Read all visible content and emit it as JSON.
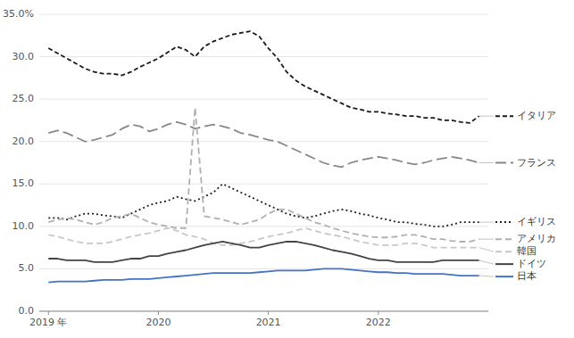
{
  "chart_data": {
    "type": "line",
    "categories": [
      "2019 年",
      null,
      null,
      null,
      null,
      null,
      null,
      null,
      null,
      null,
      null,
      null,
      "2020",
      null,
      null,
      null,
      null,
      null,
      null,
      null,
      null,
      null,
      null,
      null,
      "2021",
      null,
      null,
      null,
      null,
      null,
      null,
      null,
      null,
      null,
      null,
      null,
      "2022",
      null,
      null,
      null,
      null,
      null,
      null,
      null,
      null,
      null,
      null,
      null
    ],
    "ylim": [
      0,
      35
    ],
    "yticks": [
      {
        "value": 0.0,
        "label": "0.0"
      },
      {
        "value": 5.0,
        "label": "5.0"
      },
      {
        "value": 10.0,
        "label": "10.0"
      },
      {
        "value": 15.0,
        "label": "15.0"
      },
      {
        "value": 20.0,
        "label": "20.0"
      },
      {
        "value": 25.0,
        "label": "25.0"
      },
      {
        "value": 30.0,
        "label": "30.0"
      },
      {
        "value": 35.0,
        "label": "35.0%"
      }
    ],
    "grid": true,
    "legend": "right",
    "series": [
      {
        "name": "イタリア",
        "color": "#1a1a1a",
        "line_style": "shortdash",
        "values": [
          31.0,
          30.4,
          29.8,
          29.2,
          28.6,
          28.2,
          28.0,
          28.0,
          27.8,
          28.2,
          28.8,
          29.3,
          29.8,
          30.5,
          31.2,
          30.8,
          30.0,
          31.2,
          31.8,
          32.2,
          32.6,
          32.8,
          33.0,
          32.4,
          31.0,
          29.8,
          28.2,
          27.2,
          26.5,
          26.0,
          25.5,
          25.0,
          24.5,
          24.0,
          23.8,
          23.5,
          23.5,
          23.3,
          23.2,
          23.0,
          23.0,
          22.8,
          22.8,
          22.5,
          22.5,
          22.3,
          22.2,
          23.0
        ]
      },
      {
        "name": "フランス",
        "color": "#888888",
        "line_style": "longdash",
        "values": [
          21.0,
          21.3,
          21.0,
          20.5,
          20.0,
          20.2,
          20.5,
          20.8,
          21.5,
          22.0,
          21.8,
          21.2,
          21.5,
          22.0,
          22.3,
          22.0,
          21.5,
          21.8,
          22.0,
          21.8,
          21.5,
          21.0,
          20.8,
          20.5,
          20.2,
          20.0,
          19.5,
          19.0,
          18.5,
          18.0,
          17.5,
          17.2,
          17.0,
          17.5,
          17.8,
          18.0,
          18.2,
          18.0,
          17.8,
          17.5,
          17.3,
          17.5,
          17.8,
          18.0,
          18.2,
          18.0,
          17.8,
          17.5
        ]
      },
      {
        "name": "イギリス",
        "color": "#222222",
        "line_style": "dotted",
        "values": [
          11.0,
          11.0,
          10.8,
          11.2,
          11.5,
          11.5,
          11.3,
          11.2,
          11.0,
          11.5,
          12.0,
          12.5,
          12.8,
          13.0,
          13.5,
          13.2,
          13.0,
          13.5,
          14.0,
          15.0,
          14.5,
          14.0,
          13.5,
          13.0,
          12.5,
          12.0,
          11.5,
          11.2,
          11.0,
          11.2,
          11.5,
          11.8,
          12.0,
          11.8,
          11.5,
          11.3,
          11.0,
          10.8,
          10.5,
          10.5,
          10.3,
          10.2,
          10.0,
          10.0,
          10.2,
          10.5,
          10.5,
          10.5
        ]
      },
      {
        "name": "アメリカ",
        "color": "#b0b0b0",
        "line_style": "dashed",
        "values": [
          10.5,
          10.8,
          11.0,
          10.8,
          10.5,
          10.2,
          10.5,
          11.0,
          11.2,
          11.5,
          11.0,
          10.5,
          10.2,
          10.0,
          9.8,
          9.8,
          24.0,
          11.2,
          11.0,
          10.8,
          10.5,
          10.2,
          10.5,
          10.8,
          11.5,
          12.0,
          12.0,
          11.5,
          11.0,
          10.5,
          10.2,
          9.8,
          9.5,
          9.2,
          9.0,
          8.8,
          8.7,
          8.7,
          8.8,
          9.0,
          9.0,
          8.8,
          8.5,
          8.5,
          8.3,
          8.2,
          8.2,
          8.5
        ]
      },
      {
        "name": "韓国",
        "color": "#c8c8c8",
        "line_style": "dashed",
        "values": [
          9.0,
          8.8,
          8.5,
          8.2,
          8.0,
          8.0,
          8.0,
          8.2,
          8.5,
          8.8,
          9.0,
          9.2,
          9.5,
          9.8,
          9.5,
          9.0,
          8.8,
          8.5,
          8.0,
          7.8,
          7.8,
          8.0,
          8.2,
          8.5,
          8.8,
          9.0,
          9.2,
          9.5,
          9.8,
          9.5,
          9.2,
          9.0,
          8.8,
          8.5,
          8.2,
          8.0,
          7.8,
          7.8,
          7.8,
          8.0,
          8.0,
          7.8,
          7.5,
          7.5,
          7.5,
          7.5,
          7.5,
          7.5
        ]
      },
      {
        "name": "ドイツ",
        "color": "#444444",
        "line_style": "solid",
        "values": [
          6.2,
          6.2,
          6.0,
          6.0,
          6.0,
          5.8,
          5.8,
          5.8,
          6.0,
          6.2,
          6.2,
          6.5,
          6.5,
          6.8,
          7.0,
          7.2,
          7.5,
          7.8,
          8.0,
          8.2,
          8.0,
          7.8,
          7.5,
          7.5,
          7.8,
          8.0,
          8.2,
          8.2,
          8.0,
          7.8,
          7.5,
          7.2,
          7.0,
          6.8,
          6.5,
          6.2,
          6.0,
          6.0,
          5.8,
          5.8,
          5.8,
          5.8,
          5.8,
          6.0,
          6.0,
          6.0,
          6.0,
          6.0
        ]
      },
      {
        "name": "日本",
        "color": "#4472c4",
        "line_style": "solid",
        "values": [
          3.4,
          3.5,
          3.5,
          3.5,
          3.5,
          3.6,
          3.7,
          3.7,
          3.7,
          3.8,
          3.8,
          3.8,
          3.9,
          4.0,
          4.1,
          4.2,
          4.3,
          4.4,
          4.5,
          4.5,
          4.5,
          4.5,
          4.5,
          4.6,
          4.7,
          4.8,
          4.8,
          4.8,
          4.8,
          4.9,
          5.0,
          5.0,
          5.0,
          4.9,
          4.8,
          4.7,
          4.6,
          4.6,
          4.5,
          4.5,
          4.4,
          4.4,
          4.4,
          4.4,
          4.3,
          4.2,
          4.2,
          4.2
        ]
      }
    ]
  }
}
